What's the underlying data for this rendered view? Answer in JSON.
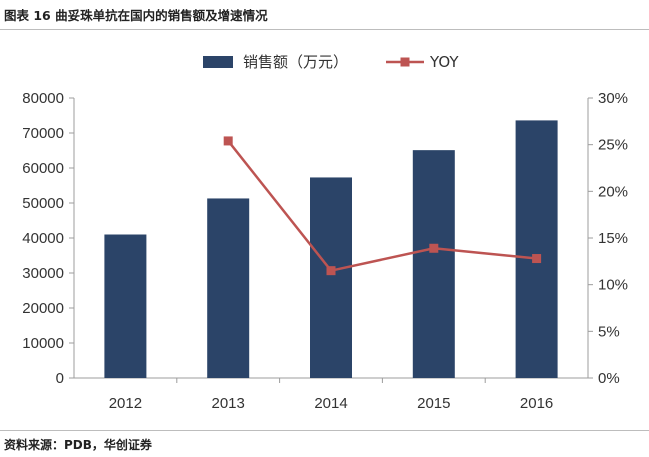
{
  "figure": {
    "title": "图表 16  曲妥珠单抗在国内的销售额及增速情况",
    "source": "资料来源：PDB，华创证券"
  },
  "colors": {
    "bar": "#2b4468",
    "line": "#bd5452",
    "axis": "#9c9c9c",
    "text": "#333333"
  },
  "chart_data": {
    "type": "bar",
    "title": "",
    "categories": [
      "2012",
      "2013",
      "2014",
      "2015",
      "2016"
    ],
    "series": [
      {
        "name": "销售额（万元）",
        "type": "bar",
        "axis": "left",
        "values": [
          41000,
          51300,
          57300,
          65100,
          73600
        ]
      },
      {
        "name": "YOY",
        "type": "line",
        "axis": "right",
        "marker": "square",
        "values": [
          null,
          0.254,
          0.115,
          0.139,
          0.128
        ]
      }
    ],
    "y_left": {
      "range": [
        0,
        80000
      ],
      "ticks": [
        "0",
        "10000",
        "20000",
        "30000",
        "40000",
        "50000",
        "60000",
        "70000",
        "80000"
      ]
    },
    "y_right": {
      "range": [
        0,
        0.3
      ],
      "ticks": [
        "0%",
        "5%",
        "10%",
        "15%",
        "20%",
        "25%",
        "30%"
      ]
    },
    "grid": false,
    "legend": "top-center"
  }
}
